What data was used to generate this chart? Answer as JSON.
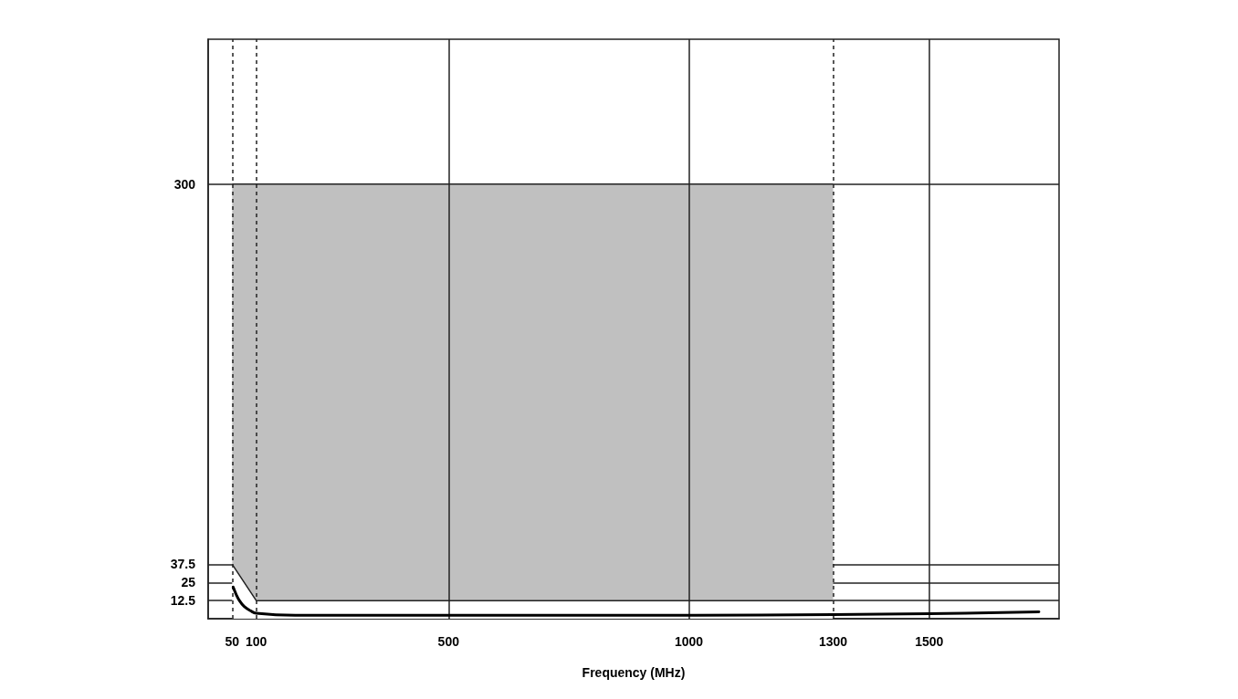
{
  "chart_data": {
    "type": "line",
    "xlabel": "Frequency (MHz)",
    "xlim": [
      0,
      1770
    ],
    "xticks": [
      50,
      100,
      500,
      1000,
      1300,
      1500
    ],
    "ylim": [
      0,
      400
    ],
    "yticks": [
      12.5,
      25,
      37.5,
      300
    ],
    "grid": "y",
    "marker": "none",
    "stacked": true,
    "ref_lines": [
      {
        "axis": "x",
        "value": 50,
        "line_style": "dashed",
        "color": "#222222"
      },
      {
        "axis": "x",
        "value": 100,
        "line_style": "dashed",
        "color": "#222222"
      },
      {
        "axis": "x",
        "value": 500,
        "line_style": "solid",
        "color": "#222222"
      },
      {
        "axis": "x",
        "value": 1000,
        "line_style": "solid",
        "color": "#222222"
      },
      {
        "axis": "x",
        "value": 1300,
        "line_style": "dashed",
        "color": "#222222"
      },
      {
        "axis": "x",
        "value": 1500,
        "line_style": "solid",
        "color": "#222222"
      }
    ],
    "series": [
      {
        "type": "area",
        "color": "#ffffff",
        "x": [
          50,
          100,
          1300
        ],
        "values": [
          37.5,
          12.5,
          12.5
        ]
      },
      {
        "type": "area",
        "color": "#c0c0c0",
        "x": [
          50,
          100,
          1300
        ],
        "values": [
          262.5,
          287.5,
          287.5
        ]
      },
      {
        "type": "line",
        "color": "#000000",
        "x": [
          52,
          58,
          65,
          75,
          88,
          100,
          181,
          500,
          1000,
          1300,
          1500,
          1728
        ],
        "values": [
          21.8,
          17,
          12.5,
          8.4,
          5.5,
          3.8,
          2.4,
          2.3,
          2.3,
          2.9,
          3.4,
          4.8
        ]
      }
    ]
  }
}
